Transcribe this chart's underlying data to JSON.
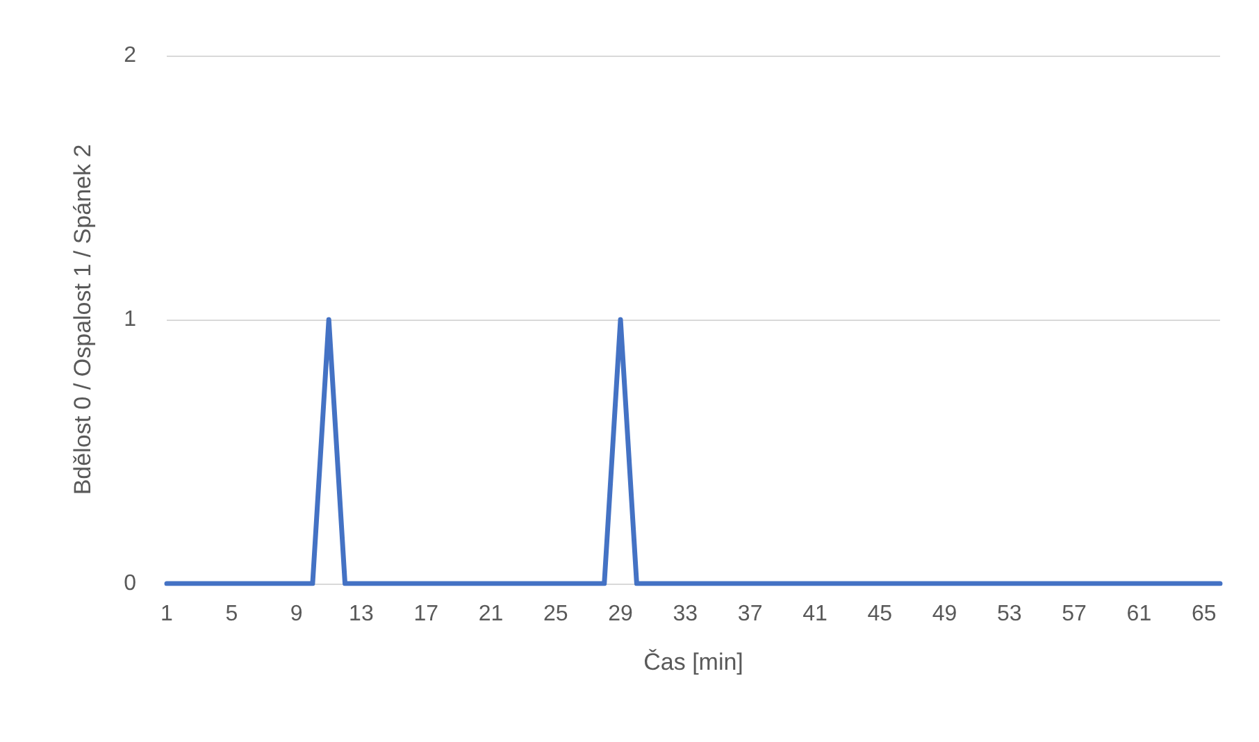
{
  "chart_data": {
    "type": "line",
    "xlabel": "Čas [min]",
    "ylabel": "Bdělost 0 / Ospalost 1 / Spánek 2",
    "categories": [
      "1",
      null,
      null,
      null,
      "5",
      null,
      null,
      null,
      "9",
      null,
      null,
      null,
      "13",
      null,
      null,
      null,
      "17",
      null,
      null,
      null,
      "21",
      null,
      null,
      null,
      "25",
      null,
      null,
      null,
      "29",
      null,
      null,
      null,
      "33",
      null,
      null,
      null,
      "37",
      null,
      null,
      null,
      "41",
      null,
      null,
      null,
      "45",
      null,
      null,
      null,
      "49",
      null,
      null,
      null,
      "53",
      null,
      null,
      null,
      "57",
      null,
      null,
      null,
      "61",
      null,
      null,
      null,
      "65",
      null
    ],
    "series": [
      {
        "color": "#4472c4",
        "values": [
          0,
          0,
          0,
          0,
          0,
          0,
          0,
          0,
          0,
          0,
          1,
          0,
          0,
          0,
          0,
          0,
          0,
          0,
          0,
          0,
          0,
          0,
          0,
          0,
          0,
          0,
          0,
          0,
          1,
          0,
          0,
          0,
          0,
          0,
          0,
          0,
          0,
          0,
          0,
          0,
          0,
          0,
          0,
          0,
          0,
          0,
          0,
          0,
          0,
          0,
          0,
          0,
          0,
          0,
          0,
          0,
          0,
          0,
          0,
          0,
          0,
          0,
          0,
          0,
          0,
          0
        ]
      }
    ],
    "ylim": [
      0,
      2
    ],
    "yticks": [
      0,
      1,
      2
    ],
    "grid": "y",
    "line_style": "solid",
    "marker": "none"
  }
}
